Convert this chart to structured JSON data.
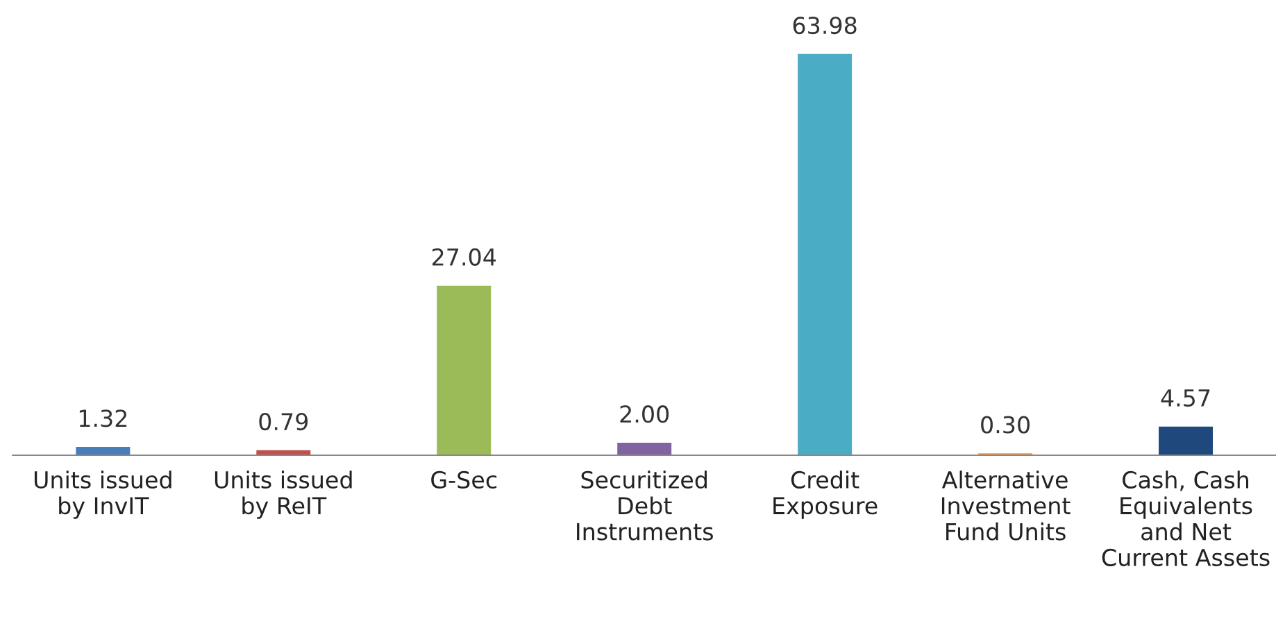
{
  "chart_data": {
    "type": "bar",
    "categories": [
      "Units issued by InvIT",
      "Units issued by ReIT",
      "G-Sec",
      "Securitized Debt Instruments",
      "Credit Exposure",
      "Alternative Investment Fund Units",
      "Cash, Cash Equivalents and Net Current Assets"
    ],
    "values": [
      1.32,
      0.79,
      27.04,
      2.0,
      63.98,
      0.3,
      4.57
    ],
    "value_labels": [
      "1.32",
      "0.79",
      "27.04",
      "2.00",
      "63.98",
      "0.30",
      "4.57"
    ],
    "colors": [
      "#4a7ebb",
      "#c0504d",
      "#9bbb59",
      "#8064a2",
      "#4bacc6",
      "#f79646",
      "#1f497d"
    ],
    "grid": false,
    "legend": false
  }
}
